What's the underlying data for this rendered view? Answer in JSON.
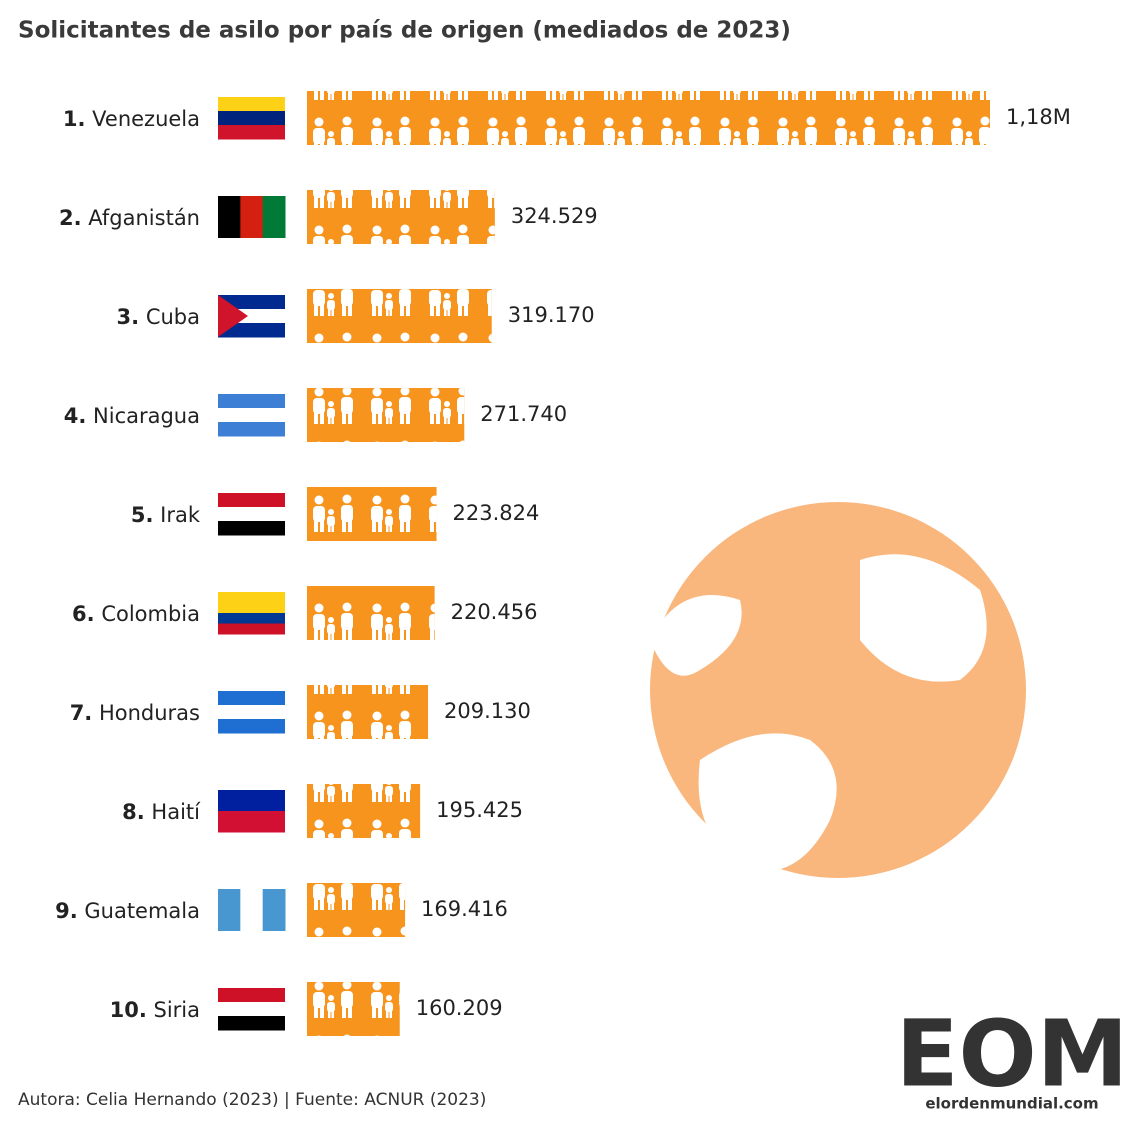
{
  "chart_data": {
    "type": "bar",
    "title": "Solicitantes de asilo por país de origen (mediados de 2023)",
    "ranks": [
      "1.",
      "2.",
      "3.",
      "4.",
      "5.",
      "6.",
      "7.",
      "8.",
      "9.",
      "10."
    ],
    "categories": [
      "Venezuela",
      "Afganistán",
      "Cuba",
      "Nicaragua",
      "Irak",
      "Colombia",
      "Honduras",
      "Haití",
      "Guatemala",
      "Siria"
    ],
    "values": [
      1180000,
      324529,
      319170,
      271740,
      223824,
      220456,
      209130,
      195425,
      169416,
      160209
    ],
    "value_labels": [
      "1,18M",
      "324.529",
      "319.170",
      "271.740",
      "223.824",
      "220.456",
      "209.130",
      "195.425",
      "169.416",
      "160.209"
    ],
    "color": "#f7941d",
    "source": "Autora: Celia Hernando (2023) | Fuente: ACNUR  (2023)",
    "logo": "EOM",
    "logo_url": "elordenmundial.com"
  }
}
